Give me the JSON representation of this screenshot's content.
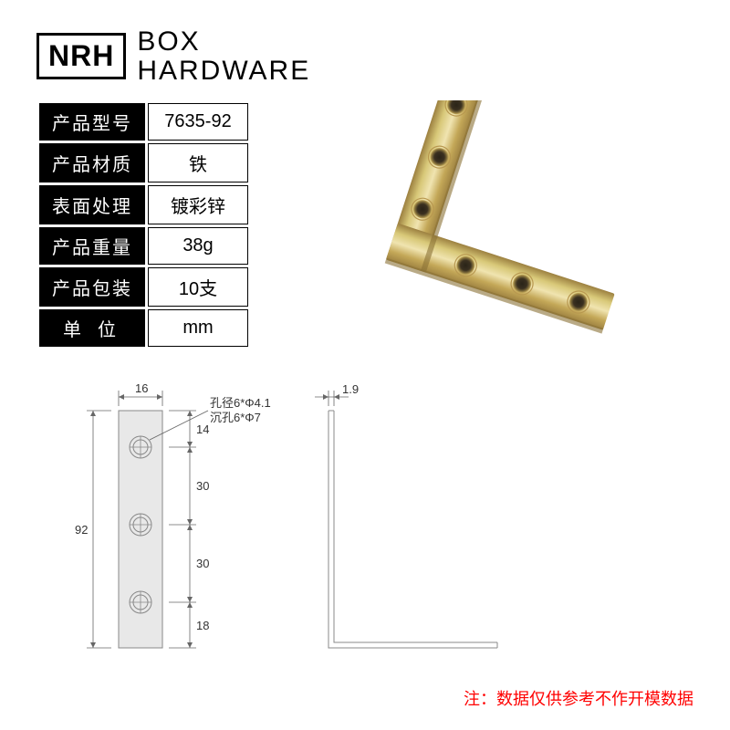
{
  "logo": {
    "brand": "NRH",
    "line1": "BOX",
    "line2": "HARDWARE"
  },
  "specs": {
    "rows": [
      {
        "label": "产品型号",
        "value": "7635-92"
      },
      {
        "label": "产品材质",
        "value": "铁"
      },
      {
        "label": "表面处理",
        "value": "镀彩锌"
      },
      {
        "label": "产品重量",
        "value": "38g"
      },
      {
        "label": "产品包装",
        "value": "10支"
      },
      {
        "label": "单位",
        "value": "mm",
        "spaced": true
      }
    ]
  },
  "product": {
    "colors": {
      "metal_light": "#d8c878",
      "metal_mid": "#c4a858",
      "metal_dark": "#9c8040",
      "metal_shine": "#f0e4b0",
      "hole_dark": "#3a3020",
      "hole_edge": "#7a6838"
    }
  },
  "diagram": {
    "colors": {
      "part_fill": "#e8e8e8",
      "part_stroke": "#888",
      "dim_line": "#666",
      "hole_stroke": "#888"
    },
    "front": {
      "width_label": "16",
      "height_label": "92",
      "hole_note1": "孔径6*Φ4.1",
      "hole_note2": "沉孔6*Φ7",
      "dims_v": [
        "14",
        "30",
        "30",
        "18"
      ]
    },
    "side": {
      "thickness_label": "1.9"
    }
  },
  "disclaimer": "注：数据仅供参考不作开模数据"
}
